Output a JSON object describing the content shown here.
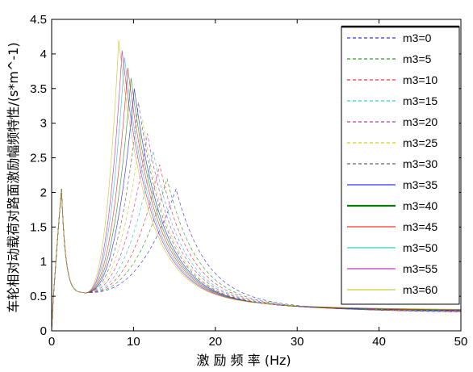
{
  "chart_data": {
    "type": "line",
    "title": "",
    "xlabel": "激 励 频 率 (Hz)",
    "ylabel": "车轮相对动载荷对路面激励幅频特性/(s*m^-1)",
    "xlim": [
      0,
      50
    ],
    "ylim": [
      0,
      4.5
    ],
    "xticks": [
      0,
      10,
      20,
      30,
      40,
      50
    ],
    "yticks": [
      0,
      0.5,
      1,
      1.5,
      2,
      2.5,
      3,
      3.5,
      4,
      4.5
    ],
    "xtick_labels": [
      "0",
      "10",
      "20",
      "30",
      "40",
      "50"
    ],
    "ytick_labels": [
      "0",
      "0.5",
      "1",
      "1.5",
      "2",
      "2.5",
      "3",
      "3.5",
      "4",
      "4.5"
    ],
    "grid": false,
    "legend_position": "top-right",
    "series": [
      {
        "name": "m3=0",
        "color": "#0000ff",
        "style": "dashed",
        "peak": [
          15.2,
          2.05
        ]
      },
      {
        "name": "m3=5",
        "color": "#008000",
        "style": "dashed",
        "peak": [
          14.1,
          2.2
        ]
      },
      {
        "name": "m3=10",
        "color": "#ff0000",
        "style": "dashed",
        "peak": [
          13.2,
          2.4
        ]
      },
      {
        "name": "m3=15",
        "color": "#00bfbf",
        "style": "dashed",
        "peak": [
          12.4,
          2.6
        ]
      },
      {
        "name": "m3=20",
        "color": "#bf00bf",
        "style": "dashed",
        "peak": [
          11.7,
          2.85
        ]
      },
      {
        "name": "m3=25",
        "color": "#bfbf00",
        "style": "dashed",
        "peak": [
          11.1,
          3.05
        ]
      },
      {
        "name": "m3=30",
        "color": "#404040",
        "style": "dashed",
        "peak": [
          10.6,
          3.3
        ]
      },
      {
        "name": "m3=35",
        "color": "#0000ff",
        "style": "solid",
        "peak": [
          10.1,
          3.5
        ]
      },
      {
        "name": "m3=40",
        "color": "#008000",
        "style": "solid",
        "peak": [
          9.7,
          3.65
        ]
      },
      {
        "name": "m3=45",
        "color": "#ff0000",
        "style": "solid",
        "peak": [
          9.3,
          3.8
        ]
      },
      {
        "name": "m3=50",
        "color": "#00bfbf",
        "style": "solid",
        "peak": [
          8.9,
          3.95
        ]
      },
      {
        "name": "m3=55",
        "color": "#bf00bf",
        "style": "solid",
        "peak": [
          8.6,
          4.05
        ]
      },
      {
        "name": "m3=60",
        "color": "#bfbf00",
        "style": "solid",
        "peak": [
          8.2,
          4.2
        ]
      }
    ],
    "low_peak": [
      1.2,
      2.05
    ],
    "valley": [
      4.0,
      0.55
    ],
    "tail_at_50": 0.25
  }
}
